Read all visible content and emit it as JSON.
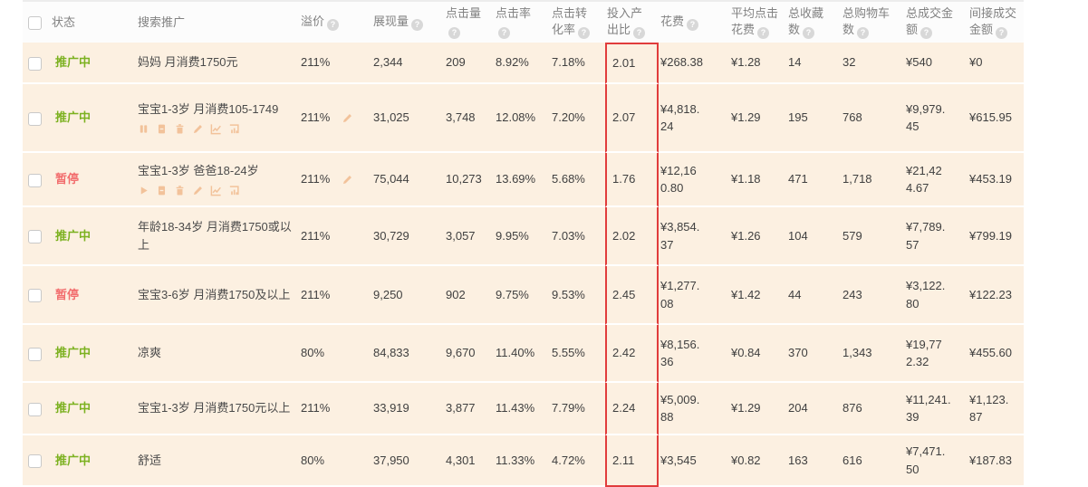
{
  "colors": {
    "row_background": "#fcf0e1",
    "status_active": "#7cb120",
    "status_paused": "#f26e6e",
    "highlight_border": "#e13c3c",
    "action_icon": "#f2c29a",
    "header_text": "#828282"
  },
  "help_glyph": "?",
  "table": {
    "columns": [
      {
        "key": "status",
        "label": "状态",
        "help": false
      },
      {
        "key": "name",
        "label": "搜索推广",
        "help": false
      },
      {
        "key": "premium",
        "label": "溢价",
        "help": true
      },
      {
        "key": "impressions",
        "label": "展现量",
        "help": true
      },
      {
        "key": "clicks",
        "label": "点击量",
        "help": true
      },
      {
        "key": "ctr",
        "label": "点击率",
        "help": true
      },
      {
        "key": "cvr",
        "label": "点击转化率",
        "help": true
      },
      {
        "key": "roi",
        "label": "投入产出比",
        "help": true,
        "highlighted": true
      },
      {
        "key": "cost",
        "label": "花费",
        "help": true
      },
      {
        "key": "avg_click_cost",
        "label": "平均点击花费",
        "help": true
      },
      {
        "key": "favorites",
        "label": "总收藏数",
        "help": true
      },
      {
        "key": "carts",
        "label": "总购物车数",
        "help": true
      },
      {
        "key": "total_amount",
        "label": "总成交金额",
        "help": true
      },
      {
        "key": "indirect_amount",
        "label": "间接成交金额",
        "help": true
      }
    ],
    "rows": [
      {
        "status_type": "active",
        "actions": [],
        "premium_editable": false,
        "values": {
          "status": "推广中",
          "name": "妈妈 月消费1750元",
          "premium": "211%",
          "impressions": "2,344",
          "clicks": "209",
          "ctr": "8.92%",
          "cvr": "7.18%",
          "roi": "2.01",
          "cost": "¥268.38",
          "avg_click_cost": "¥1.28",
          "favorites": "14",
          "carts": "32",
          "total_amount": "¥540",
          "indirect_amount": "¥0"
        }
      },
      {
        "status_type": "active",
        "actions": [
          "pause",
          "note",
          "trash",
          "edit",
          "line-chart",
          "bar-chart"
        ],
        "premium_editable": true,
        "values": {
          "status": "推广中",
          "name": "宝宝1-3岁 月消费105-1749",
          "premium": "211%",
          "impressions": "31,025",
          "clicks": "3,748",
          "ctr": "12.08%",
          "cvr": "7.20%",
          "roi": "2.07",
          "cost": "¥4,818.24",
          "avg_click_cost": "¥1.29",
          "favorites": "195",
          "carts": "768",
          "total_amount": "¥9,979.45",
          "indirect_amount": "¥615.95"
        }
      },
      {
        "status_type": "paused",
        "actions": [
          "play",
          "note",
          "trash",
          "edit",
          "line-chart",
          "bar-chart"
        ],
        "premium_editable": true,
        "values": {
          "status": "暂停",
          "name": "宝宝1-3岁 爸爸18-24岁",
          "premium": "211%",
          "impressions": "75,044",
          "clicks": "10,273",
          "ctr": "13.69%",
          "cvr": "5.68%",
          "roi": "1.76",
          "cost": "¥12,160.80",
          "avg_click_cost": "¥1.18",
          "favorites": "471",
          "carts": "1,718",
          "total_amount": "¥21,424.67",
          "indirect_amount": "¥453.19"
        }
      },
      {
        "status_type": "active",
        "actions": [],
        "premium_editable": false,
        "values": {
          "status": "推广中",
          "name": "年龄18-34岁 月消费1750或以上",
          "premium": "211%",
          "impressions": "30,729",
          "clicks": "3,057",
          "ctr": "9.95%",
          "cvr": "7.03%",
          "roi": "2.02",
          "cost": "¥3,854.37",
          "avg_click_cost": "¥1.26",
          "favorites": "104",
          "carts": "579",
          "total_amount": "¥7,789.57",
          "indirect_amount": "¥799.19"
        }
      },
      {
        "status_type": "paused",
        "actions": [],
        "premium_editable": false,
        "values": {
          "status": "暂停",
          "name": "宝宝3-6岁 月消费1750及以上",
          "premium": "211%",
          "impressions": "9,250",
          "clicks": "902",
          "ctr": "9.75%",
          "cvr": "9.53%",
          "roi": "2.45",
          "cost": "¥1,277.08",
          "avg_click_cost": "¥1.42",
          "favorites": "44",
          "carts": "243",
          "total_amount": "¥3,122.80",
          "indirect_amount": "¥122.23"
        }
      },
      {
        "status_type": "active",
        "actions": [],
        "premium_editable": false,
        "values": {
          "status": "推广中",
          "name": "凉爽",
          "premium": "80%",
          "impressions": "84,833",
          "clicks": "9,670",
          "ctr": "11.40%",
          "cvr": "5.55%",
          "roi": "2.42",
          "cost": "¥8,156.36",
          "avg_click_cost": "¥0.84",
          "favorites": "370",
          "carts": "1,343",
          "total_amount": "¥19,772.32",
          "indirect_amount": "¥455.60"
        }
      },
      {
        "status_type": "active",
        "actions": [],
        "premium_editable": false,
        "values": {
          "status": "推广中",
          "name": "宝宝1-3岁 月消费1750元以上",
          "premium": "211%",
          "impressions": "33,919",
          "clicks": "3,877",
          "ctr": "11.43%",
          "cvr": "7.79%",
          "roi": "2.24",
          "cost": "¥5,009.88",
          "avg_click_cost": "¥1.29",
          "favorites": "204",
          "carts": "876",
          "total_amount": "¥11,241.39",
          "indirect_amount": "¥1,123.87"
        }
      },
      {
        "status_type": "active",
        "actions": [],
        "premium_editable": false,
        "values": {
          "status": "推广中",
          "name": "舒适",
          "premium": "80%",
          "impressions": "37,950",
          "clicks": "4,301",
          "ctr": "11.33%",
          "cvr": "4.72%",
          "roi": "2.11",
          "cost": "¥3,545",
          "avg_click_cost": "¥0.82",
          "favorites": "163",
          "carts": "616",
          "total_amount": "¥7,471.50",
          "indirect_amount": "¥187.83"
        }
      }
    ]
  }
}
